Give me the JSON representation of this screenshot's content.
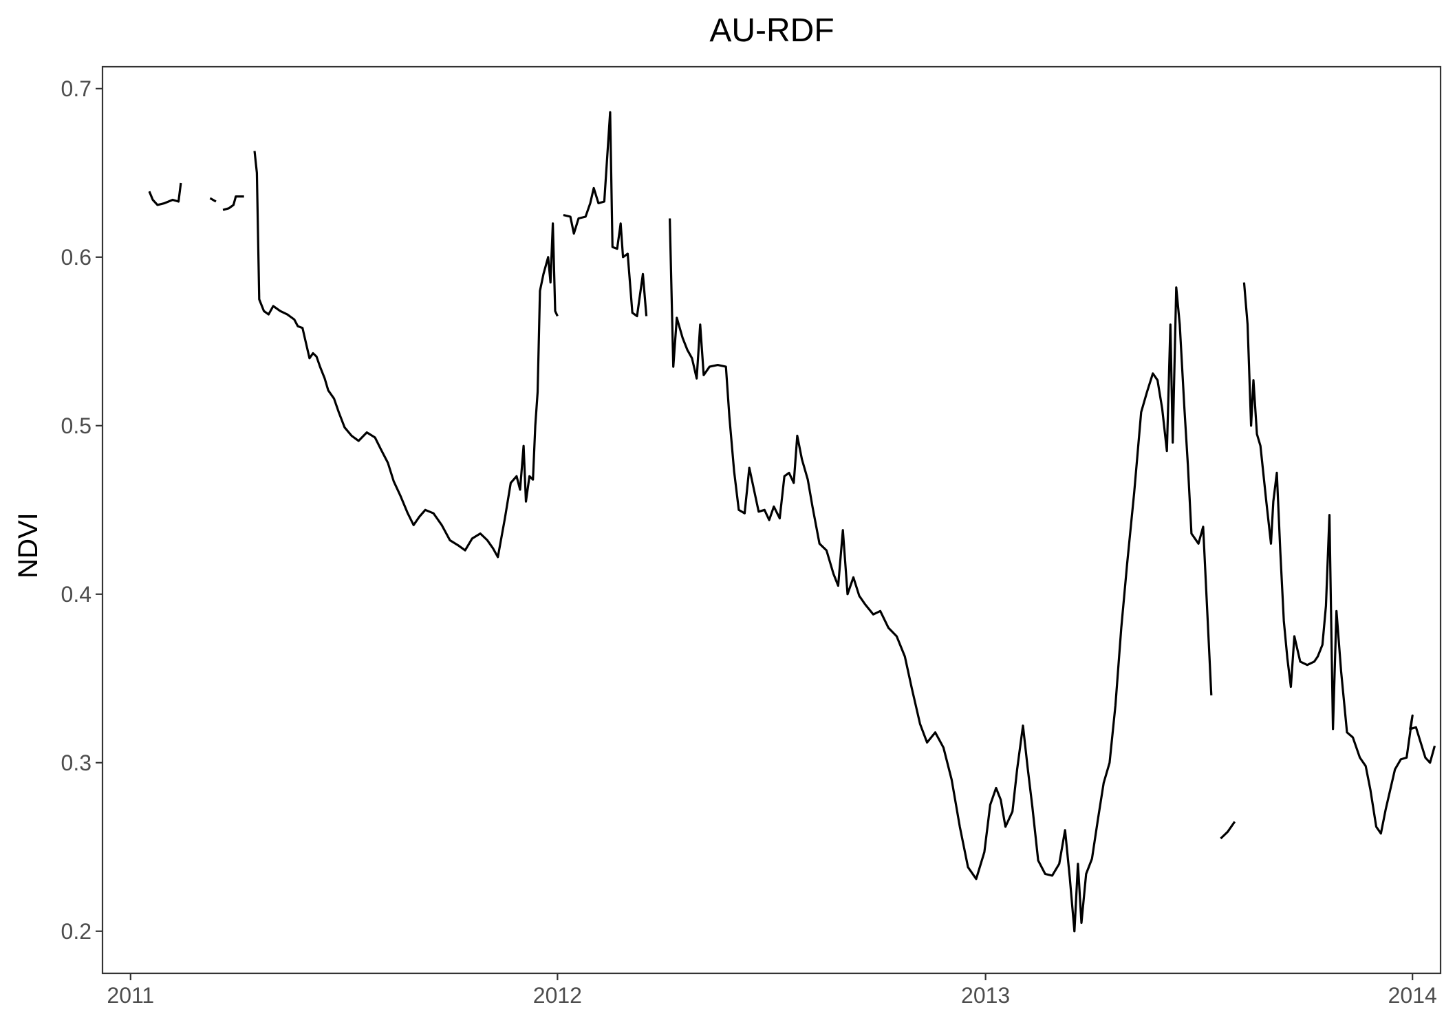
{
  "chart_data": {
    "type": "line",
    "title": "AU-RDF",
    "xlabel": "",
    "ylabel": "NDVI",
    "xlim": [
      "2010-12-08",
      "2014-01-25"
    ],
    "ylim": [
      0.175,
      0.713
    ],
    "x_ticks": [
      "2011",
      "2012",
      "2013",
      "2014"
    ],
    "y_ticks": [
      "0.2",
      "0.3",
      "0.4",
      "0.5",
      "0.6",
      "0.7"
    ],
    "grid": false,
    "legend": "none",
    "series_color": "#000000",
    "series": [
      {
        "segments": [
          [
            [
              "2011-01-17",
              0.639
            ],
            [
              "2011-01-20",
              0.634
            ],
            [
              "2011-01-24",
              0.631
            ],
            [
              "2011-01-30",
              0.632
            ],
            [
              "2011-02-06",
              0.634
            ],
            [
              "2011-02-11",
              0.633
            ],
            [
              "2011-02-13",
              0.644
            ]
          ],
          [
            [
              "2011-03-10",
              0.635
            ],
            [
              "2011-03-15",
              0.633
            ]
          ],
          [
            [
              "2011-03-21",
              0.628
            ],
            [
              "2011-03-26",
              0.629
            ],
            [
              "2011-03-30",
              0.631
            ],
            [
              "2011-04-01",
              0.636
            ],
            [
              "2011-04-08",
              0.636
            ]
          ],
          [
            [
              "2011-04-17",
              0.663
            ],
            [
              "2011-04-19",
              0.65
            ],
            [
              "2011-04-21",
              0.575
            ],
            [
              "2011-04-25",
              0.568
            ],
            [
              "2011-04-29",
              0.566
            ],
            [
              "2011-05-03",
              0.571
            ],
            [
              "2011-05-09",
              0.568
            ],
            [
              "2011-05-15",
              0.566
            ],
            [
              "2011-05-21",
              0.563
            ],
            [
              "2011-05-24",
              0.559
            ],
            [
              "2011-05-28",
              0.558
            ],
            [
              "2011-05-31",
              0.549
            ],
            [
              "2011-06-03",
              0.54
            ],
            [
              "2011-06-06",
              0.543
            ],
            [
              "2011-06-09",
              0.541
            ],
            [
              "2011-06-12",
              0.535
            ],
            [
              "2011-06-16",
              0.528
            ],
            [
              "2011-06-19",
              0.521
            ],
            [
              "2011-06-24",
              0.516
            ],
            [
              "2011-06-28",
              0.508
            ],
            [
              "2011-07-03",
              0.499
            ],
            [
              "2011-07-09",
              0.494
            ],
            [
              "2011-07-15",
              0.491
            ],
            [
              "2011-07-22",
              0.496
            ],
            [
              "2011-07-29",
              0.493
            ],
            [
              "2011-08-03",
              0.486
            ],
            [
              "2011-08-09",
              0.478
            ],
            [
              "2011-08-14",
              0.467
            ],
            [
              "2011-08-20",
              0.458
            ],
            [
              "2011-08-26",
              0.448
            ],
            [
              "2011-08-31",
              0.441
            ],
            [
              "2011-09-05",
              0.446
            ],
            [
              "2011-09-10",
              0.45
            ],
            [
              "2011-09-17",
              0.448
            ],
            [
              "2011-09-24",
              0.441
            ],
            [
              "2011-10-01",
              0.432
            ],
            [
              "2011-10-08",
              0.429
            ],
            [
              "2011-10-14",
              0.426
            ],
            [
              "2011-10-20",
              0.433
            ],
            [
              "2011-10-27",
              0.436
            ],
            [
              "2011-11-02",
              0.432
            ],
            [
              "2011-11-07",
              0.427
            ],
            [
              "2011-11-11",
              0.422
            ],
            [
              "2011-11-17",
              0.445
            ],
            [
              "2011-11-22",
              0.466
            ],
            [
              "2011-11-27",
              0.47
            ],
            [
              "2011-11-30",
              0.462
            ],
            [
              "2011-12-03",
              0.488
            ],
            [
              "2011-12-05",
              0.455
            ],
            [
              "2011-12-08",
              0.47
            ],
            [
              "2011-12-11",
              0.468
            ],
            [
              "2011-12-13",
              0.5
            ],
            [
              "2011-12-15",
              0.52
            ],
            [
              "2011-12-17",
              0.58
            ],
            [
              "2011-12-20",
              0.59
            ],
            [
              "2011-12-24",
              0.6
            ],
            [
              "2011-12-26",
              0.585
            ],
            [
              "2011-12-28",
              0.62
            ],
            [
              "2011-12-30",
              0.568
            ],
            [
              "2012-01-01",
              0.565
            ]
          ],
          [
            [
              "2012-01-06",
              0.625
            ],
            [
              "2012-01-12",
              0.624
            ],
            [
              "2012-01-15",
              0.614
            ],
            [
              "2012-01-19",
              0.623
            ],
            [
              "2012-01-25",
              0.624
            ],
            [
              "2012-01-29",
              0.632
            ],
            [
              "2012-02-01",
              0.641
            ],
            [
              "2012-02-05",
              0.632
            ],
            [
              "2012-02-10",
              0.633
            ],
            [
              "2012-02-15",
              0.686
            ],
            [
              "2012-02-17",
              0.606
            ],
            [
              "2012-02-21",
              0.605
            ],
            [
              "2012-02-24",
              0.62
            ],
            [
              "2012-02-26",
              0.6
            ],
            [
              "2012-03-01",
              0.602
            ],
            [
              "2012-03-05",
              0.567
            ],
            [
              "2012-03-09",
              0.565
            ],
            [
              "2012-03-14",
              0.59
            ],
            [
              "2012-03-17",
              0.565
            ]
          ],
          [
            [
              "2012-04-06",
              0.623
            ],
            [
              "2012-04-09",
              0.535
            ],
            [
              "2012-04-12",
              0.564
            ],
            [
              "2012-04-17",
              0.552
            ],
            [
              "2012-04-21",
              0.545
            ],
            [
              "2012-04-25",
              0.54
            ],
            [
              "2012-04-29",
              0.528
            ],
            [
              "2012-05-02",
              0.56
            ],
            [
              "2012-05-05",
              0.53
            ],
            [
              "2012-05-10",
              0.535
            ],
            [
              "2012-05-17",
              0.536
            ],
            [
              "2012-05-24",
              0.535
            ],
            [
              "2012-05-27",
              0.505
            ],
            [
              "2012-05-31",
              0.473
            ],
            [
              "2012-06-04",
              0.45
            ],
            [
              "2012-06-09",
              0.448
            ],
            [
              "2012-06-13",
              0.475
            ],
            [
              "2012-06-17",
              0.462
            ],
            [
              "2012-06-21",
              0.449
            ],
            [
              "2012-06-26",
              0.45
            ],
            [
              "2012-06-30",
              0.444
            ],
            [
              "2012-07-04",
              0.452
            ],
            [
              "2012-07-09",
              0.445
            ],
            [
              "2012-07-13",
              0.47
            ],
            [
              "2012-07-17",
              0.472
            ],
            [
              "2012-07-21",
              0.466
            ],
            [
              "2012-07-24",
              0.494
            ],
            [
              "2012-07-28",
              0.48
            ],
            [
              "2012-08-02",
              0.468
            ],
            [
              "2012-08-06",
              0.452
            ],
            [
              "2012-08-12",
              0.43
            ],
            [
              "2012-08-18",
              0.426
            ],
            [
              "2012-08-24",
              0.412
            ],
            [
              "2012-08-28",
              0.405
            ],
            [
              "2012-09-01",
              0.438
            ],
            [
              "2012-09-05",
              0.4
            ],
            [
              "2012-09-10",
              0.41
            ],
            [
              "2012-09-15",
              0.399
            ],
            [
              "2012-09-20",
              0.394
            ],
            [
              "2012-09-27",
              0.388
            ],
            [
              "2012-10-03",
              0.39
            ],
            [
              "2012-10-10",
              0.38
            ],
            [
              "2012-10-17",
              0.375
            ],
            [
              "2012-10-24",
              0.363
            ],
            [
              "2012-10-30",
              0.344
            ],
            [
              "2012-11-06",
              0.323
            ],
            [
              "2012-11-12",
              0.312
            ],
            [
              "2012-11-19",
              0.318
            ],
            [
              "2012-11-26",
              0.309
            ],
            [
              "2012-12-03",
              0.29
            ],
            [
              "2012-12-10",
              0.262
            ],
            [
              "2012-12-17",
              0.238
            ],
            [
              "2012-12-24",
              0.231
            ],
            [
              "2012-12-31",
              0.247
            ],
            [
              "2013-01-05",
              0.275
            ],
            [
              "2013-01-10",
              0.285
            ],
            [
              "2013-01-14",
              0.278
            ],
            [
              "2013-01-18",
              0.262
            ],
            [
              "2013-01-24",
              0.271
            ],
            [
              "2013-01-28",
              0.296
            ],
            [
              "2013-02-02",
              0.322
            ],
            [
              "2013-02-06",
              0.297
            ],
            [
              "2013-02-10",
              0.274
            ],
            [
              "2013-02-15",
              0.242
            ],
            [
              "2013-02-21",
              0.234
            ],
            [
              "2013-02-27",
              0.233
            ],
            [
              "2013-03-05",
              0.24
            ],
            [
              "2013-03-10",
              0.26
            ],
            [
              "2013-03-14",
              0.232
            ],
            [
              "2013-03-18",
              0.2
            ],
            [
              "2013-03-21",
              0.24
            ],
            [
              "2013-03-24",
              0.205
            ],
            [
              "2013-03-28",
              0.234
            ],
            [
              "2013-04-02",
              0.243
            ],
            [
              "2013-04-07",
              0.266
            ],
            [
              "2013-04-12",
              0.288
            ],
            [
              "2013-04-17",
              0.3
            ],
            [
              "2013-04-22",
              0.334
            ],
            [
              "2013-04-27",
              0.38
            ],
            [
              "2013-05-02",
              0.418
            ],
            [
              "2013-05-08",
              0.46
            ],
            [
              "2013-05-14",
              0.508
            ],
            [
              "2013-05-19",
              0.52
            ],
            [
              "2013-05-24",
              0.531
            ],
            [
              "2013-05-28",
              0.527
            ],
            [
              "2013-06-01",
              0.51
            ],
            [
              "2013-06-05",
              0.485
            ],
            [
              "2013-06-08",
              0.56
            ],
            [
              "2013-06-10",
              0.49
            ],
            [
              "2013-06-13",
              0.582
            ],
            [
              "2013-06-16",
              0.56
            ],
            [
              "2013-06-20",
              0.51
            ],
            [
              "2013-06-23",
              0.476
            ],
            [
              "2013-06-26",
              0.436
            ],
            [
              "2013-07-02",
              0.43
            ],
            [
              "2013-07-06",
              0.44
            ],
            [
              "2013-07-13",
              0.34
            ]
          ],
          [
            [
              "2013-07-21",
              0.255
            ],
            [
              "2013-07-27",
              0.259
            ],
            [
              "2013-08-02",
              0.265
            ]
          ],
          [
            [
              "2013-08-10",
              0.585
            ],
            [
              "2013-08-13",
              0.56
            ],
            [
              "2013-08-16",
              0.5
            ],
            [
              "2013-08-18",
              0.527
            ],
            [
              "2013-08-21",
              0.495
            ],
            [
              "2013-08-24",
              0.488
            ],
            [
              "2013-08-29",
              0.455
            ],
            [
              "2013-09-02",
              0.43
            ],
            [
              "2013-09-04",
              0.455
            ],
            [
              "2013-09-07",
              0.472
            ],
            [
              "2013-09-10",
              0.425
            ],
            [
              "2013-09-13",
              0.384
            ],
            [
              "2013-09-16",
              0.362
            ],
            [
              "2013-09-19",
              0.345
            ],
            [
              "2013-09-22",
              0.375
            ],
            [
              "2013-09-27",
              0.36
            ],
            [
              "2013-10-03",
              0.358
            ],
            [
              "2013-10-09",
              0.36
            ],
            [
              "2013-10-12",
              0.363
            ],
            [
              "2013-10-16",
              0.37
            ],
            [
              "2013-10-19",
              0.393
            ],
            [
              "2013-10-22",
              0.447
            ],
            [
              "2013-10-25",
              0.32
            ],
            [
              "2013-10-28",
              0.39
            ],
            [
              "2013-11-01",
              0.354
            ],
            [
              "2013-11-06",
              0.318
            ],
            [
              "2013-11-11",
              0.315
            ],
            [
              "2013-11-17",
              0.303
            ],
            [
              "2013-11-22",
              0.298
            ],
            [
              "2013-11-26",
              0.284
            ],
            [
              "2013-12-01",
              0.262
            ],
            [
              "2013-12-05",
              0.258
            ],
            [
              "2013-12-09",
              0.272
            ],
            [
              "2013-12-13",
              0.284
            ],
            [
              "2013-12-17",
              0.296
            ],
            [
              "2013-12-22",
              0.302
            ],
            [
              "2013-12-27",
              0.303
            ],
            [
              "2014-01-01",
              0.328
            ],
            [
              "2013-12-30",
              0.32
            ],
            [
              "2014-01-04",
              0.321
            ],
            [
              "2014-01-08",
              0.312
            ],
            [
              "2014-01-12",
              0.303
            ],
            [
              "2014-01-16",
              0.3
            ],
            [
              "2014-01-20",
              0.31
            ]
          ]
        ]
      }
    ]
  }
}
